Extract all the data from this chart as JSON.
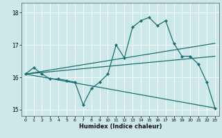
{
  "title": "",
  "xlabel": "Humidex (Indice chaleur)",
  "ylabel": "",
  "background_color": "#cce8e8",
  "line_color": "#1a6e6e",
  "grid_color": "#ffffff",
  "xlim": [
    -0.5,
    23.5
  ],
  "ylim": [
    14.8,
    18.3
  ],
  "yticks": [
    15,
    16,
    17,
    18
  ],
  "xticks": [
    0,
    1,
    2,
    3,
    4,
    5,
    6,
    7,
    8,
    9,
    10,
    11,
    12,
    13,
    14,
    15,
    16,
    17,
    18,
    19,
    20,
    21,
    22,
    23
  ],
  "main_line": {
    "x": [
      0,
      1,
      2,
      3,
      4,
      5,
      6,
      7,
      8,
      9,
      10,
      11,
      12,
      13,
      14,
      15,
      16,
      17,
      18,
      19,
      20,
      21,
      22,
      23
    ],
    "y": [
      16.1,
      16.3,
      16.1,
      15.95,
      15.95,
      15.9,
      15.85,
      15.15,
      15.65,
      15.85,
      16.1,
      17.0,
      16.6,
      17.55,
      17.75,
      17.85,
      17.6,
      17.75,
      17.05,
      16.65,
      16.65,
      16.4,
      15.85,
      15.05
    ]
  },
  "line_upper": {
    "x": [
      0,
      23
    ],
    "y": [
      16.1,
      17.05
    ]
  },
  "line_mid": {
    "x": [
      0,
      23
    ],
    "y": [
      16.1,
      16.65
    ]
  },
  "line_lower": {
    "x": [
      0,
      23
    ],
    "y": [
      16.1,
      15.05
    ]
  }
}
